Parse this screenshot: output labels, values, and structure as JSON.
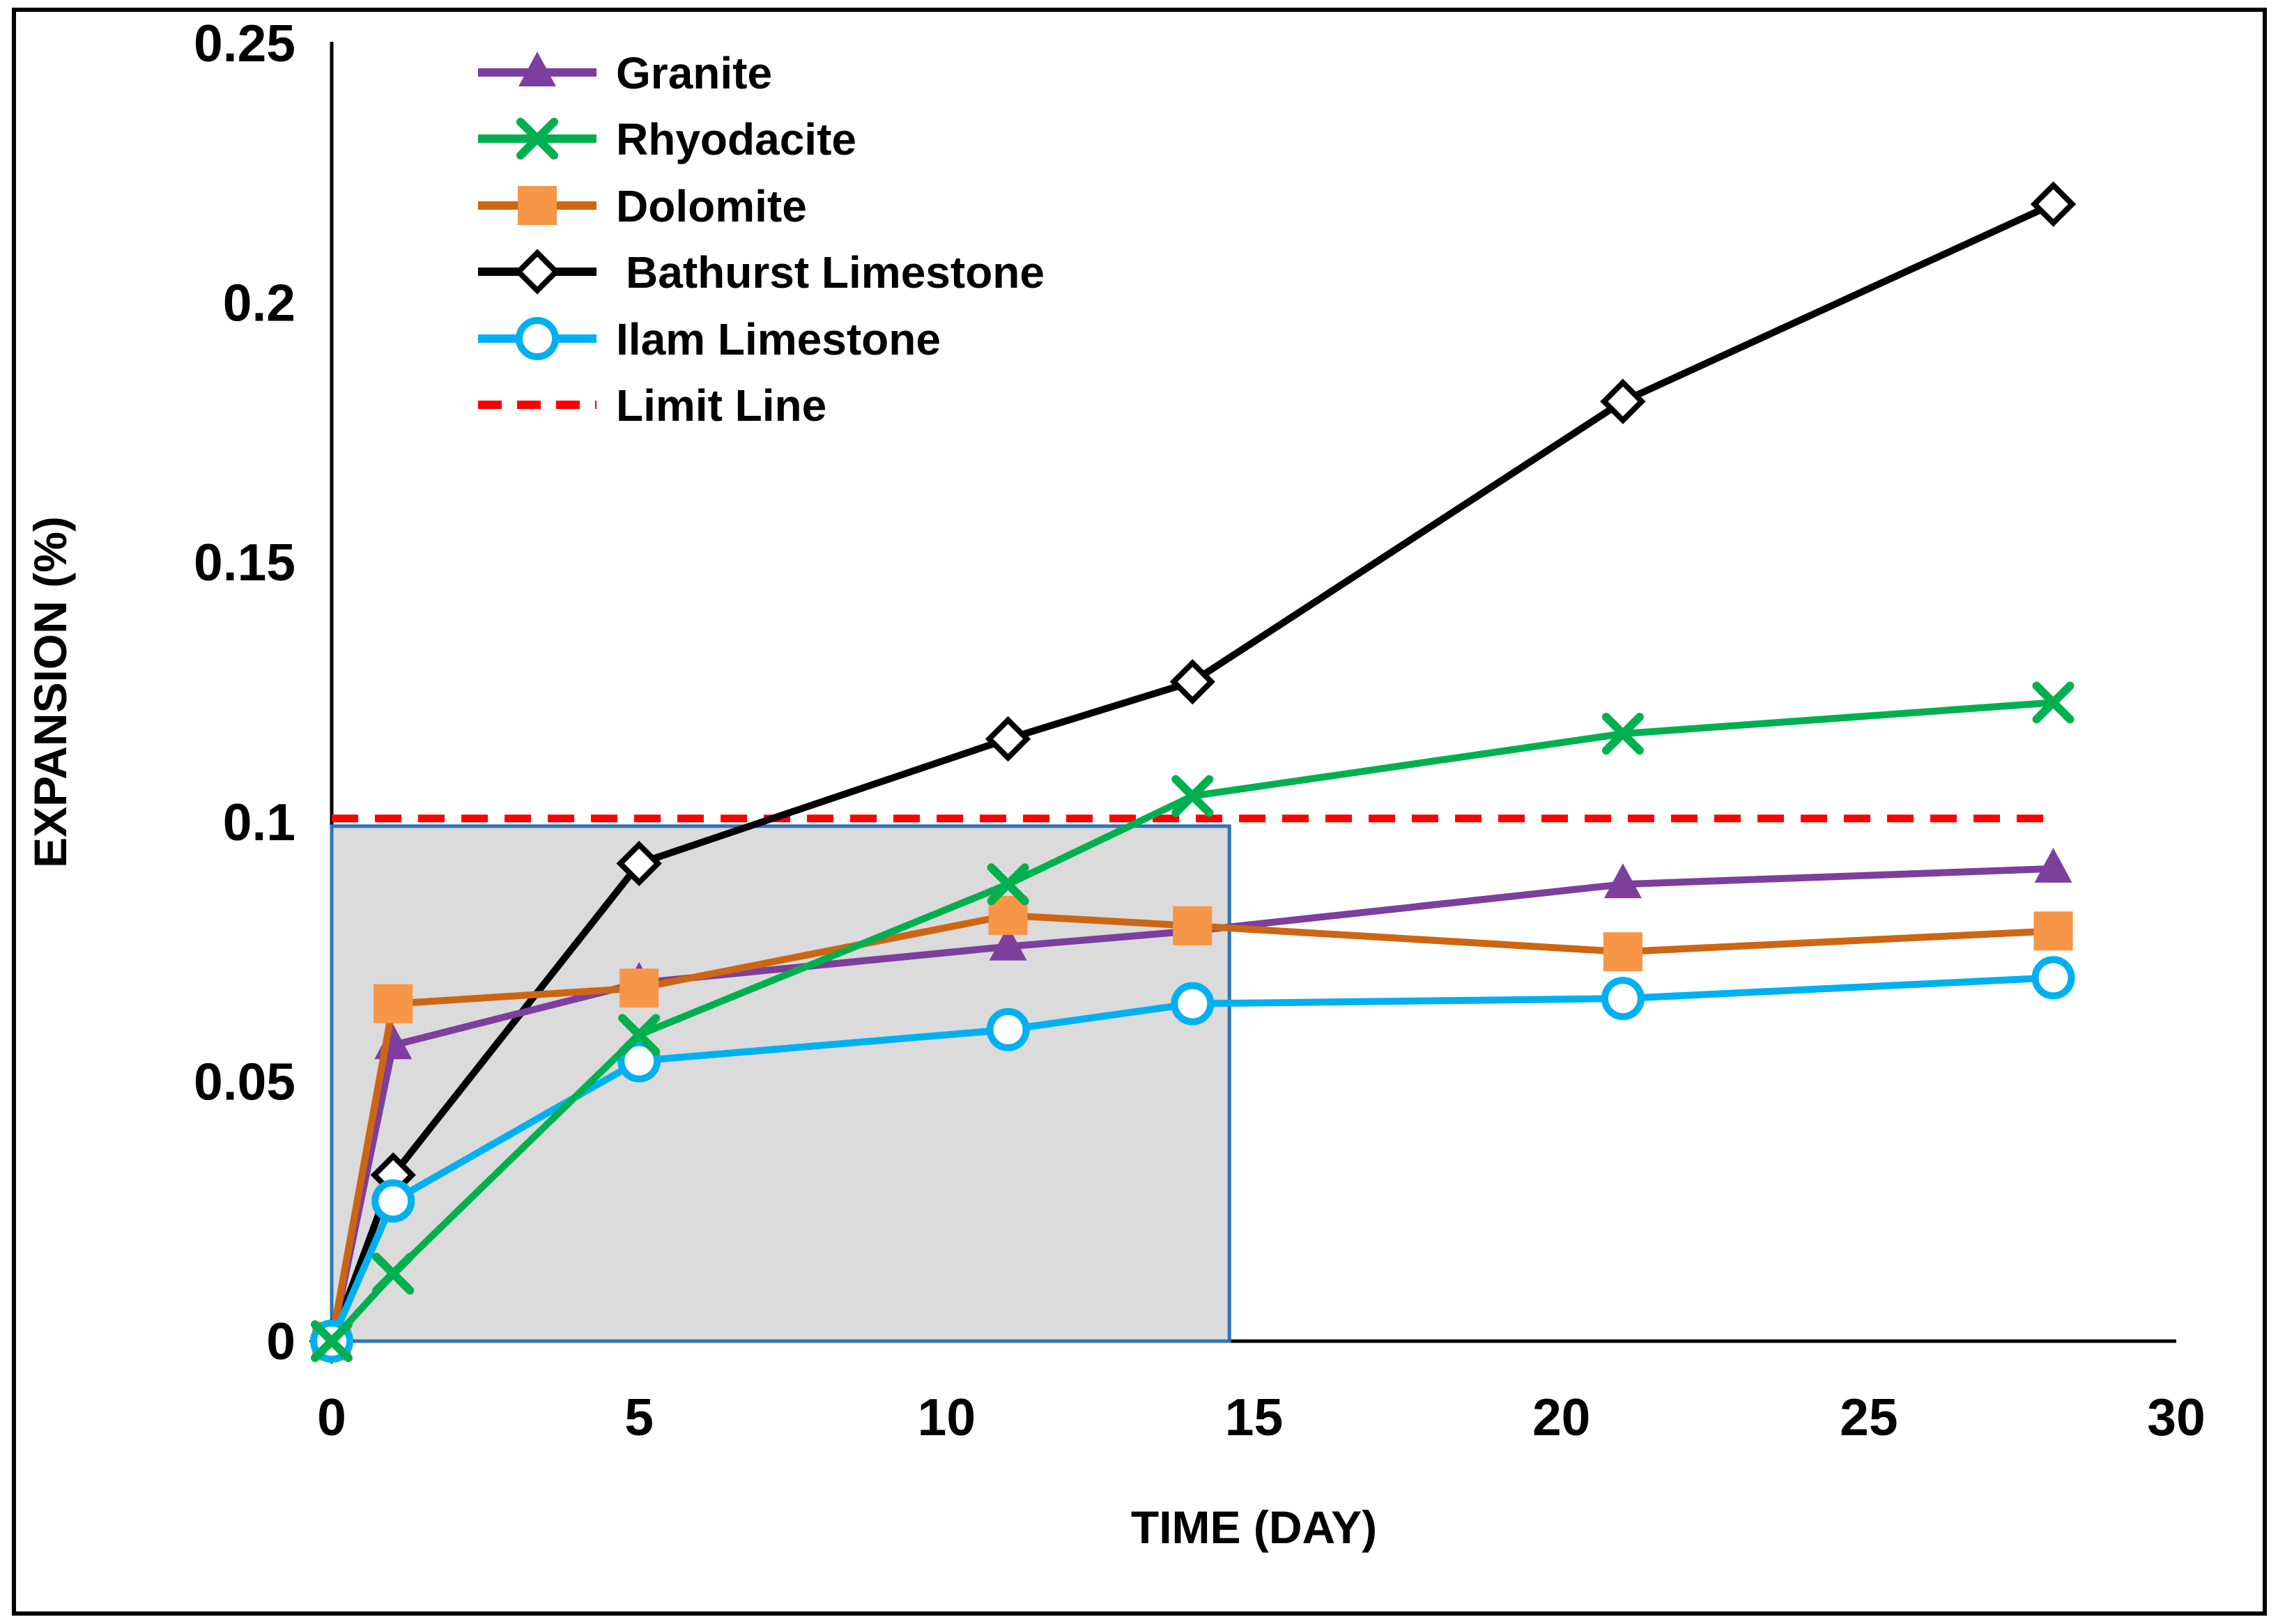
{
  "figure": {
    "background": "#ffffff",
    "border_color": "#000000"
  },
  "chart_data": {
    "type": "line",
    "title": "",
    "xlabel": "TIME (DAY)",
    "ylabel": "EXPANSION (%)",
    "xlim": [
      0,
      30
    ],
    "ylim": [
      0,
      0.25
    ],
    "x_ticks": [
      0,
      5,
      10,
      15,
      20,
      25,
      30
    ],
    "x_tick_labels": [
      "0",
      "5",
      "10",
      "15",
      "20",
      "25",
      "30"
    ],
    "y_ticks": [
      0,
      0.05,
      0.1,
      0.15,
      0.2,
      0.25
    ],
    "y_tick_labels": [
      "0",
      "0.05",
      "0.1",
      "0.15",
      "0.2",
      "0.25"
    ],
    "grid": false,
    "legend_position": "top-left-inside",
    "x": [
      0,
      1,
      5,
      11,
      14,
      21,
      28
    ],
    "series": [
      {
        "name": "Granite",
        "color": "#7D3F9D",
        "marker": "triangle",
        "marker_fill": "#7D3F9D",
        "values": [
          0,
          0.057,
          0.069,
          0.076,
          0.079,
          0.088,
          0.091
        ]
      },
      {
        "name": "Rhyodacite",
        "color": "#00B050",
        "marker": "x",
        "marker_fill": "#00B050",
        "values": [
          0,
          0.013,
          0.059,
          0.088,
          0.105,
          0.117,
          0.123
        ]
      },
      {
        "name": "Dolomite",
        "color": "#CC6613",
        "marker": "square",
        "marker_fill": "#F79646",
        "values": [
          0,
          0.065,
          0.068,
          0.082,
          0.08,
          0.075,
          0.079
        ]
      },
      {
        "name": "Bathurst Limestone",
        "color": "#000000",
        "marker": "diamond",
        "marker_fill": "#FFFFFF",
        "values": [
          0,
          0.032,
          0.092,
          0.116,
          0.127,
          0.181,
          0.219
        ]
      },
      {
        "name": "Ilam Limestone",
        "color": "#00B0F0",
        "marker": "circle",
        "marker_fill": "#FFFFFF",
        "values": [
          0,
          0.027,
          0.054,
          0.06,
          0.065,
          0.066,
          0.07
        ]
      }
    ],
    "limit_line": {
      "label": "Limit Line",
      "y": 0.1,
      "x_start": 0,
      "x_end": 28,
      "color": "#FF0000",
      "dashed": true
    },
    "shaded_region": {
      "x0": 0,
      "x1": 14.6,
      "y0": 0,
      "y1": 0.1,
      "fill": "#DBDBDB",
      "border": "#2E75B6"
    }
  }
}
